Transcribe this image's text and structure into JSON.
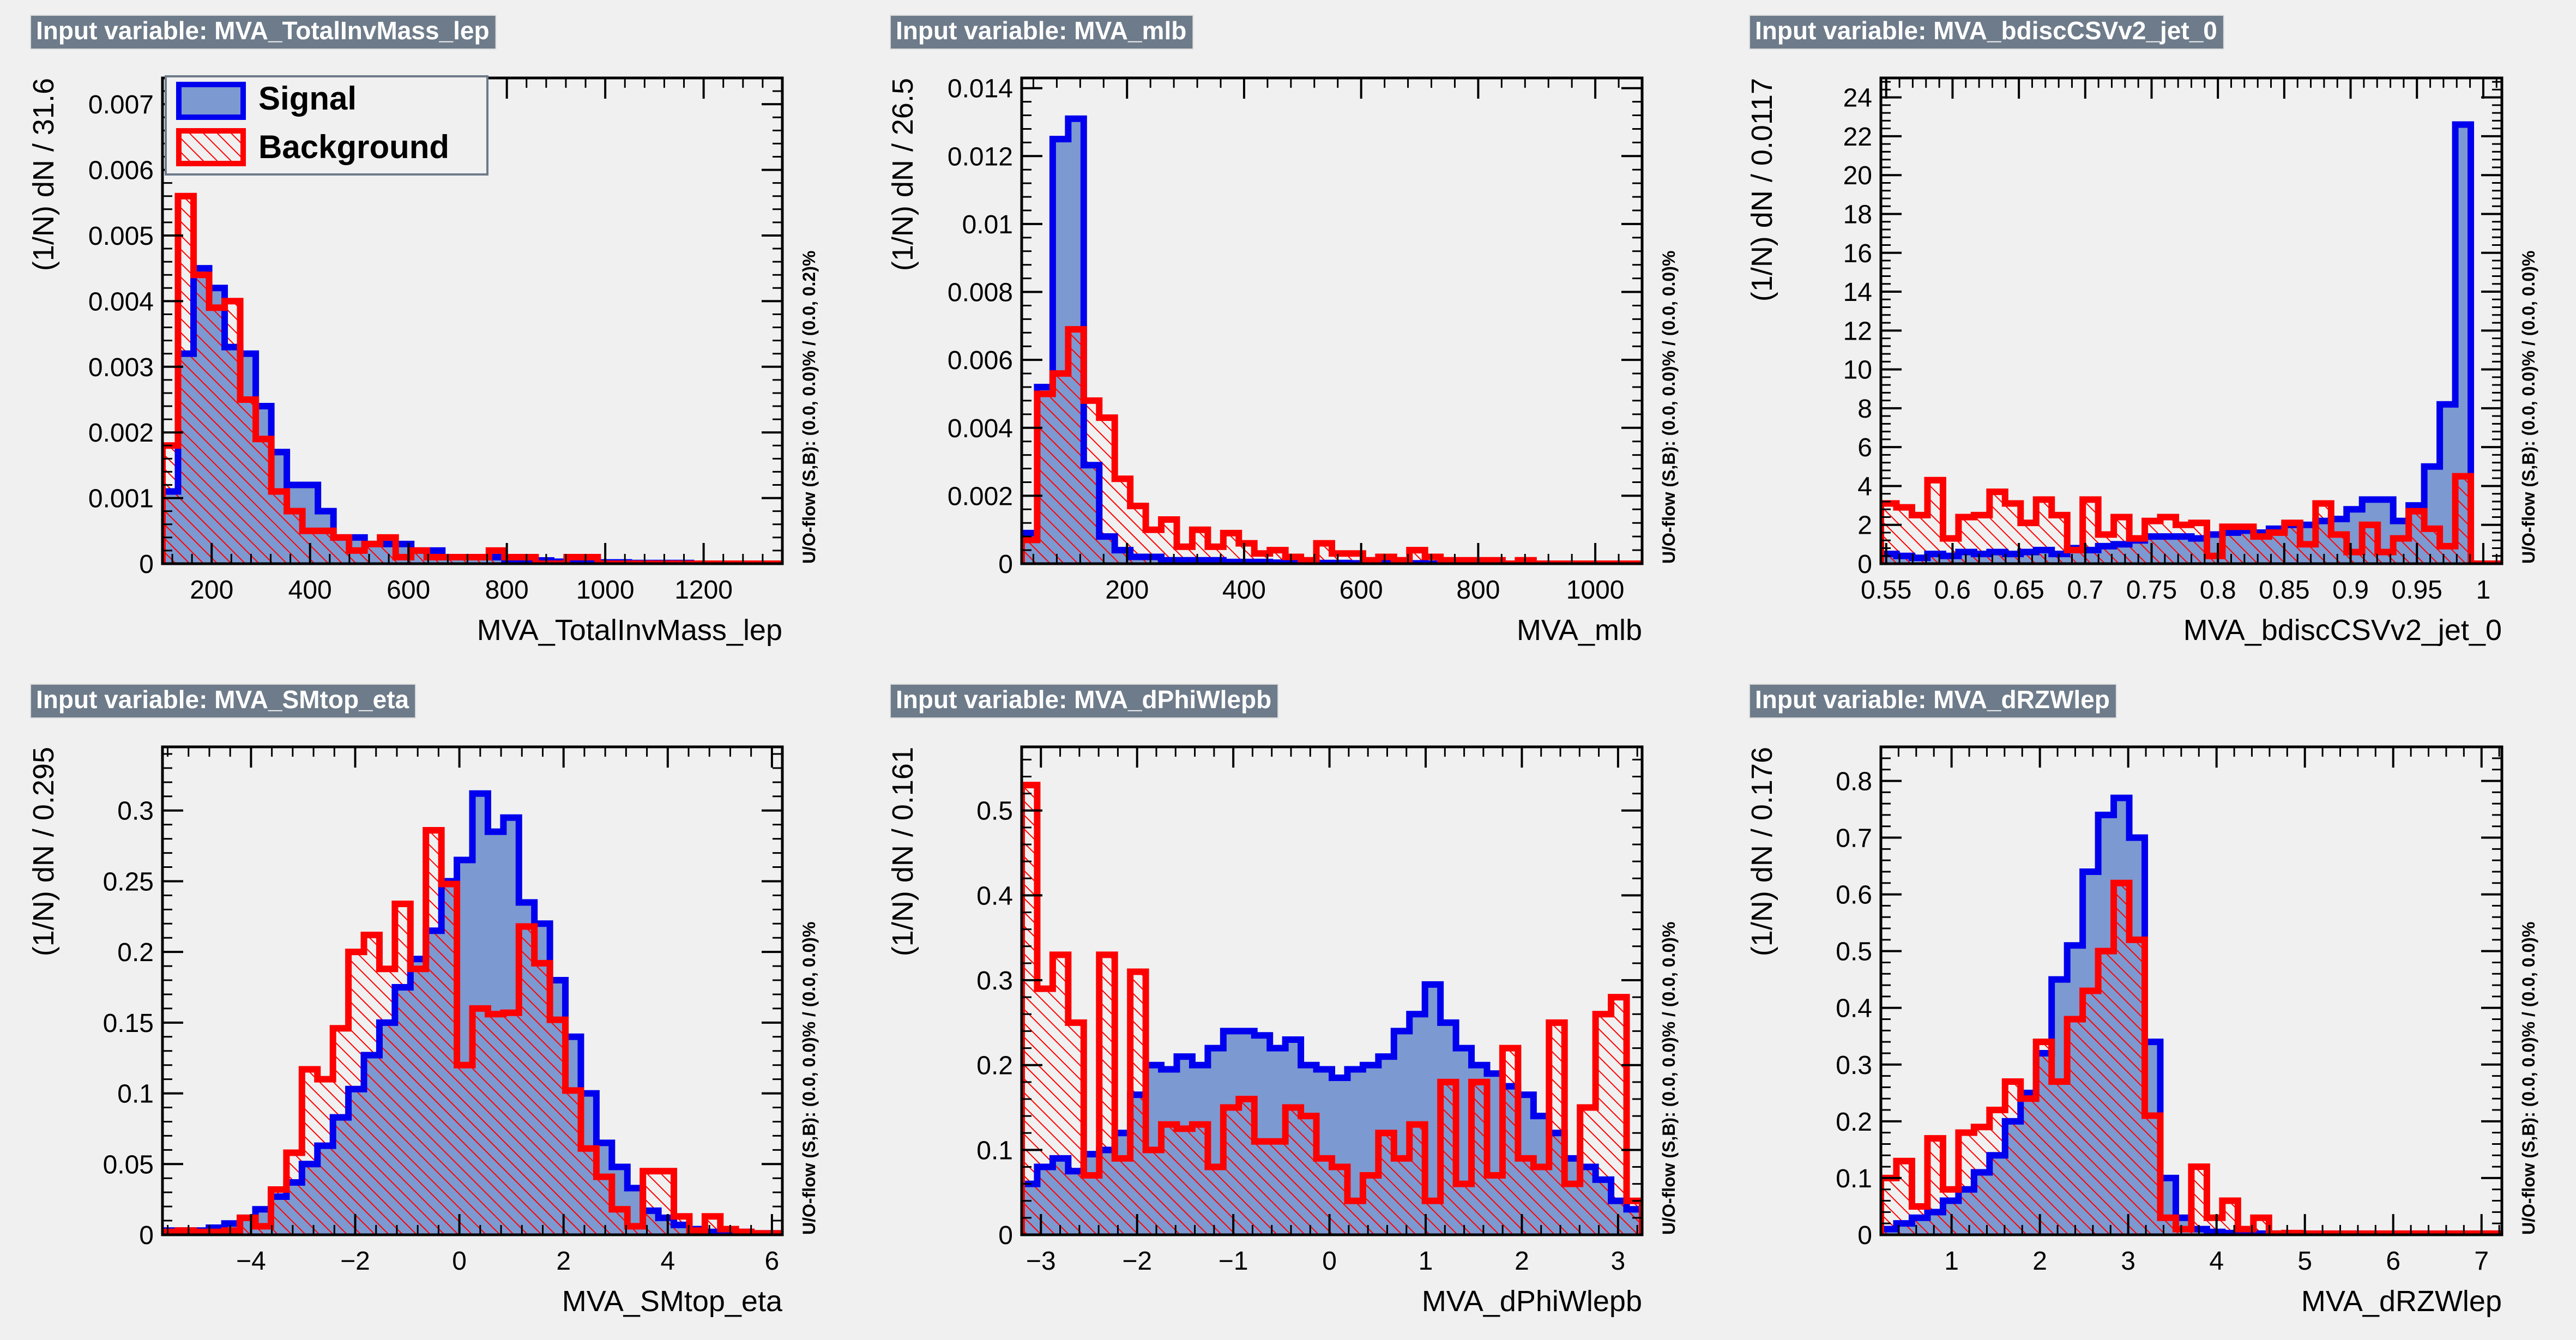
{
  "colors": {
    "background": "#f0f0f0",
    "signal_fill": "#7d99d1",
    "signal_line": "#0000ee",
    "background_line": "#ff0000",
    "title_box": "#6d7b8a",
    "title_text": "#ffffff"
  },
  "legend": {
    "signal_label": "Signal",
    "background_label": "Background"
  },
  "chart_data": [
    {
      "type": "histogram",
      "title": "Input variable: MVA_TotalInvMass_lep",
      "xlabel": "MVA_TotalInvMass_lep",
      "ylabel": "(1/N) dN / 31.6",
      "overflow_label": "U/O-flow (S,B): (0.0, 0.0)% / (0.0, 0.2)%",
      "xlim": [
        100,
        1360
      ],
      "ylim": [
        0,
        0.0074
      ],
      "xticks": [
        200,
        400,
        600,
        800,
        1000,
        1200
      ],
      "xtick_labels": [
        "200",
        "400",
        "600",
        "800",
        "1000",
        "1200"
      ],
      "yticks": [
        0,
        0.001,
        0.002,
        0.003,
        0.004,
        0.005,
        0.006,
        0.007
      ],
      "ytick_labels": [
        "0",
        "0.001",
        "0.002",
        "0.003",
        "0.004",
        "0.005",
        "0.006",
        "0.007"
      ],
      "has_legend": true,
      "bin_edges": [
        100,
        131.6,
        163.2,
        194.8,
        226.4,
        258,
        289.6,
        321.2,
        352.8,
        384.4,
        416,
        447.6,
        479.2,
        510.8,
        542.4,
        574,
        605.6,
        637.2,
        668.8,
        700.4,
        732,
        763.6,
        795.2,
        826.8,
        858.4,
        890,
        921.6,
        953.2,
        984.8,
        1016.4,
        1048,
        1079.6,
        1111.2,
        1142.8,
        1174.4,
        1206,
        1237.6,
        1269.2,
        1300.8,
        1332.4,
        1364
      ],
      "signal": [
        0.0011,
        0.0032,
        0.0045,
        0.0042,
        0.0033,
        0.0032,
        0.0024,
        0.0017,
        0.0012,
        0.0012,
        0.0008,
        0.0004,
        0.0004,
        0.0003,
        0.0003,
        0.0003,
        0.0002,
        0.0002,
        0.0001,
        0.0001,
        0.0001,
        0.0001,
        5e-05,
        5e-05,
        5e-05,
        3e-05,
        3e-05,
        2e-05,
        2e-05,
        2e-05,
        1e-05,
        1e-05,
        1e-05,
        1e-05,
        0,
        0,
        0,
        0,
        0,
        0
      ],
      "background": [
        0.0018,
        0.0056,
        0.0044,
        0.0039,
        0.004,
        0.0025,
        0.0019,
        0.0011,
        0.0008,
        0.0005,
        0.0005,
        0.0004,
        0.0002,
        0.0003,
        0.0004,
        0.0001,
        0.0002,
        0.0001,
        0.0001,
        0.0001,
        0.0001,
        0.0002,
        0.0001,
        0.0001,
        0,
        0,
        0.0001,
        0.0001,
        0,
        0,
        0,
        0,
        0,
        0,
        0,
        0,
        0,
        0,
        0,
        0
      ]
    },
    {
      "type": "histogram",
      "title": "Input variable: MVA_mlb",
      "xlabel": "MVA_mlb",
      "ylabel": "(1/N) dN / 26.5",
      "overflow_label": "U/O-flow (S,B): (0.0, 0.0)% / (0.0, 0.0)%",
      "xlim": [
        20,
        1080
      ],
      "ylim": [
        0,
        0.0143
      ],
      "xticks": [
        200,
        400,
        600,
        800,
        1000
      ],
      "xtick_labels": [
        "200",
        "400",
        "600",
        "800",
        "1000"
      ],
      "yticks": [
        0,
        0.002,
        0.004,
        0.006,
        0.008,
        0.01,
        0.012,
        0.014
      ],
      "ytick_labels": [
        "0",
        "0.002",
        "0.004",
        "0.006",
        "0.008",
        "0.01",
        "0.012",
        "0.014"
      ],
      "has_legend": false,
      "bin_edges": [
        20,
        46.5,
        73,
        99.5,
        126,
        152.5,
        179,
        205.5,
        232,
        258.5,
        285,
        311.5,
        338,
        364.5,
        391,
        417.5,
        444,
        470.5,
        497,
        523.5,
        550,
        576.5,
        603,
        629.5,
        656,
        682.5,
        709,
        735.5,
        762,
        788.5,
        815,
        841.5,
        868,
        894.5,
        921,
        947.5,
        974,
        1000.5,
        1027,
        1053.5,
        1080
      ],
      "signal": [
        0.0009,
        0.0052,
        0.0125,
        0.0131,
        0.0029,
        0.0008,
        0.0004,
        0.0002,
        0.0002,
        0.0001,
        0.0001,
        0.0001,
        0.0001,
        5e-05,
        5e-05,
        5e-05,
        3e-05,
        3e-05,
        2e-05,
        2e-05,
        2e-05,
        1e-05,
        1e-05,
        1e-05,
        1e-05,
        1e-05,
        0,
        0,
        0,
        0,
        0,
        0,
        0,
        0,
        0,
        0,
        0,
        0,
        0,
        0
      ],
      "background": [
        0.0007,
        0.005,
        0.0056,
        0.0069,
        0.0048,
        0.0043,
        0.0025,
        0.0017,
        0.001,
        0.0013,
        0.0005,
        0.001,
        0.0005,
        0.0009,
        0.0006,
        0.0003,
        0.0004,
        0.0002,
        0.0001,
        0.0006,
        0.0003,
        0.0003,
        0.0001,
        0.0002,
        0.0001,
        0.0004,
        0.0002,
        0.0001,
        0.0001,
        0.0001,
        0.0001,
        0,
        0.0001,
        0,
        0,
        0,
        0,
        0,
        0,
        0
      ]
    },
    {
      "type": "histogram",
      "title": "Input variable: MVA_bdiscCSVv2_jet_0",
      "xlabel": "MVA_bdiscCSVv2_jet_0",
      "ylabel": "(1/N) dN / 0.0117",
      "overflow_label": "U/O-flow (S,B): (0.0, 0.0)% / (0.0, 0.0)%",
      "xlim": [
        0.546,
        1.014
      ],
      "ylim": [
        0,
        25
      ],
      "xticks": [
        0.55,
        0.6,
        0.65,
        0.7,
        0.75,
        0.8,
        0.85,
        0.9,
        0.95,
        1
      ],
      "xtick_labels": [
        "0.55",
        "0.6",
        "0.65",
        "0.7",
        "0.75",
        "0.8",
        "0.85",
        "0.9",
        "0.95",
        "1"
      ],
      "yticks": [
        0,
        2,
        4,
        6,
        8,
        10,
        12,
        14,
        16,
        18,
        20,
        22,
        24
      ],
      "ytick_labels": [
        "0",
        "2",
        "4",
        "6",
        "8",
        "10",
        "12",
        "14",
        "16",
        "18",
        "20",
        "22",
        "24"
      ],
      "has_legend": false,
      "bin_edges": [
        0.546,
        0.5577,
        0.5694,
        0.5811,
        0.5928,
        0.6045,
        0.6162,
        0.6279,
        0.6396,
        0.6513,
        0.663,
        0.6747,
        0.6864,
        0.6981,
        0.7098,
        0.7215,
        0.7332,
        0.7449,
        0.7566,
        0.7683,
        0.78,
        0.7917,
        0.8034,
        0.8151,
        0.8268,
        0.8385,
        0.8502,
        0.8619,
        0.8736,
        0.8853,
        0.897,
        0.9087,
        0.9204,
        0.9321,
        0.9438,
        0.9555,
        0.9672,
        0.9789,
        0.9906,
        1.0023,
        1.014
      ],
      "signal": [
        0.5,
        0.4,
        0.3,
        0.5,
        0.4,
        0.6,
        0.5,
        0.6,
        0.5,
        0.6,
        0.7,
        0.5,
        0.8,
        0.7,
        0.9,
        1.0,
        1.2,
        1.4,
        1.4,
        1.4,
        1.3,
        1.5,
        1.6,
        1.7,
        1.6,
        1.8,
        2.0,
        2.0,
        2.2,
        2.3,
        2.8,
        3.3,
        3.3,
        2.2,
        3.0,
        5.0,
        8.2,
        22.6,
        0,
        0
      ],
      "background": [
        3.1,
        2.9,
        2.5,
        4.3,
        1.3,
        2.4,
        2.5,
        3.7,
        3.1,
        2.1,
        3.3,
        2.5,
        0.7,
        3.3,
        1.5,
        2.4,
        1.3,
        2.2,
        2.4,
        2.0,
        2.1,
        0.4,
        1.9,
        1.9,
        1.4,
        1.6,
        2.1,
        1.0,
        3.1,
        1.5,
        0.6,
        2.0,
        0.6,
        1.3,
        2.7,
        1.8,
        0.9,
        4.5,
        0,
        0
      ]
    },
    {
      "type": "histogram",
      "title": "Input variable: MVA_SMtop_eta",
      "xlabel": "MVA_SMtop_eta",
      "ylabel": "(1/N) dN / 0.295",
      "overflow_label": "U/O-flow (S,B): (0.0, 0.0)% / (0.0, 0.0)%",
      "xlim": [
        -5.7,
        6.2
      ],
      "ylim": [
        0,
        0.345
      ],
      "xticks": [
        -4,
        -2,
        0,
        2,
        4,
        6
      ],
      "xtick_labels": [
        "−4",
        "−2",
        "0",
        "2",
        "4",
        "6"
      ],
      "yticks": [
        0,
        0.05,
        0.1,
        0.15,
        0.2,
        0.25,
        0.3
      ],
      "ytick_labels": [
        "0",
        "0.05",
        "0.1",
        "0.15",
        "0.2",
        "0.25",
        "0.3"
      ],
      "has_legend": false,
      "bin_edges": [
        -5.7,
        -5.4025,
        -5.105,
        -4.8075,
        -4.51,
        -4.2125,
        -3.915,
        -3.6175,
        -3.32,
        -3.0225,
        -2.725,
        -2.4275,
        -2.13,
        -1.8325,
        -1.535,
        -1.2375,
        -0.94,
        -0.6425,
        -0.345,
        -0.0475,
        0.25,
        0.5475,
        0.845,
        1.1425,
        1.44,
        1.7375,
        2.035,
        2.3325,
        2.63,
        2.9275,
        3.225,
        3.5225,
        3.82,
        4.1175,
        4.415,
        4.7125,
        5.01,
        5.3075,
        5.605,
        5.9025,
        6.2
      ],
      "signal": [
        0.003,
        0.003,
        0.003,
        0.005,
        0.008,
        0.012,
        0.018,
        0.027,
        0.037,
        0.05,
        0.063,
        0.083,
        0.103,
        0.127,
        0.15,
        0.175,
        0.195,
        0.215,
        0.25,
        0.265,
        0.312,
        0.285,
        0.295,
        0.235,
        0.22,
        0.18,
        0.14,
        0.1,
        0.065,
        0.048,
        0.033,
        0.017,
        0.012,
        0.007,
        0.004,
        0.002,
        0.002,
        0.002,
        0.001,
        0.001
      ],
      "background": [
        0.002,
        0.003,
        0.002,
        0.002,
        0.003,
        0.012,
        0.006,
        0.032,
        0.058,
        0.117,
        0.11,
        0.146,
        0.2,
        0.212,
        0.188,
        0.234,
        0.188,
        0.286,
        0.248,
        0.12,
        0.16,
        0.156,
        0.157,
        0.218,
        0.192,
        0.152,
        0.102,
        0.061,
        0.041,
        0.018,
        0.006,
        0.045,
        0.045,
        0.013,
        0.003,
        0.013,
        0.004,
        0.002,
        0.001,
        0.001
      ]
    },
    {
      "type": "histogram",
      "title": "Input variable: MVA_dPhiWlepb",
      "xlabel": "MVA_dPhiWlepb",
      "ylabel": "(1/N) dN / 0.161",
      "overflow_label": "U/O-flow (S,B): (0.0, 0.0)% / (0.0, 0.0)%",
      "xlim": [
        -3.2,
        3.25
      ],
      "ylim": [
        0,
        0.575
      ],
      "xticks": [
        -3,
        -2,
        -1,
        0,
        1,
        2,
        3
      ],
      "xtick_labels": [
        "−3",
        "−2",
        "−1",
        "0",
        "1",
        "2",
        "3"
      ],
      "yticks": [
        0,
        0.1,
        0.2,
        0.3,
        0.4,
        0.5
      ],
      "ytick_labels": [
        "0",
        "0.1",
        "0.2",
        "0.3",
        "0.4",
        "0.5"
      ],
      "has_legend": false,
      "bin_edges": [
        -3.2,
        -3.03875,
        -2.8775,
        -2.71625,
        -2.555,
        -2.39375,
        -2.2325,
        -2.07125,
        -1.91,
        -1.74875,
        -1.5875,
        -1.42625,
        -1.265,
        -1.10375,
        -0.9425,
        -0.78125,
        -0.62,
        -0.45875,
        -0.2975,
        -0.13625,
        0.025,
        0.18625,
        0.3475,
        0.50875,
        0.67,
        0.83125,
        0.9925,
        1.15375,
        1.315,
        1.47625,
        1.6375,
        1.79875,
        1.96,
        2.12125,
        2.2825,
        2.44375,
        2.605,
        2.76625,
        2.9275,
        3.08875,
        3.25
      ],
      "signal": [
        0.06,
        0.08,
        0.09,
        0.075,
        0.095,
        0.1,
        0.12,
        0.165,
        0.2,
        0.195,
        0.21,
        0.2,
        0.22,
        0.24,
        0.24,
        0.235,
        0.22,
        0.23,
        0.2,
        0.195,
        0.185,
        0.195,
        0.2,
        0.21,
        0.24,
        0.26,
        0.295,
        0.25,
        0.22,
        0.2,
        0.19,
        0.175,
        0.165,
        0.14,
        0.12,
        0.09,
        0.08,
        0.065,
        0.04,
        0.03
      ],
      "background": [
        0.53,
        0.29,
        0.33,
        0.25,
        0.07,
        0.33,
        0.09,
        0.31,
        0.1,
        0.13,
        0.125,
        0.13,
        0.08,
        0.15,
        0.16,
        0.11,
        0.11,
        0.15,
        0.14,
        0.09,
        0.08,
        0.04,
        0.07,
        0.12,
        0.09,
        0.13,
        0.04,
        0.18,
        0.06,
        0.18,
        0.07,
        0.22,
        0.09,
        0.08,
        0.25,
        0.06,
        0.15,
        0.26,
        0.28,
        0.04
      ]
    },
    {
      "type": "histogram",
      "title": "Input variable: MVA_dRZWlep",
      "xlabel": "MVA_dRZWlep",
      "ylabel": "(1/N) dN / 0.176",
      "overflow_label": "U/O-flow (S,B): (0.0, 0.0)% / (0.0, 0.0)%",
      "xlim": [
        0.2,
        7.23
      ],
      "ylim": [
        0,
        0.86
      ],
      "xticks": [
        1,
        2,
        3,
        4,
        5,
        6,
        7
      ],
      "xtick_labels": [
        "1",
        "2",
        "3",
        "4",
        "5",
        "6",
        "7"
      ],
      "yticks": [
        0,
        0.1,
        0.2,
        0.3,
        0.4,
        0.5,
        0.6,
        0.7,
        0.8
      ],
      "ytick_labels": [
        "0",
        "0.1",
        "0.2",
        "0.3",
        "0.4",
        "0.5",
        "0.6",
        "0.7",
        "0.8"
      ],
      "has_legend": false,
      "bin_edges": [
        0.2,
        0.375725,
        0.55145,
        0.727175,
        0.9029,
        1.078625,
        1.25435,
        1.430075,
        1.6058,
        1.781525,
        1.95725,
        2.132975,
        2.3087,
        2.484425,
        2.66015,
        2.835875,
        3.0116,
        3.187325,
        3.36305,
        3.538775,
        3.7145,
        3.890225,
        4.06595,
        4.241675,
        4.4174,
        4.593125,
        4.76885,
        4.944575,
        5.1203,
        5.296025,
        5.47175,
        5.647475,
        5.8232,
        5.998925,
        6.17465,
        6.350375,
        6.5261,
        6.701825,
        6.87755,
        7.053275,
        7.229
      ],
      "signal": [
        0.01,
        0.02,
        0.03,
        0.04,
        0.06,
        0.08,
        0.11,
        0.14,
        0.2,
        0.25,
        0.32,
        0.45,
        0.51,
        0.64,
        0.74,
        0.77,
        0.7,
        0.34,
        0.1,
        0.03,
        0.01,
        0.005,
        0.003,
        0.003,
        0.002,
        0.002,
        0.001,
        0.001,
        0.001,
        0.001,
        0.001,
        0,
        0,
        0,
        0,
        0,
        0,
        0,
        0,
        0
      ],
      "background": [
        0.1,
        0.13,
        0.05,
        0.17,
        0.08,
        0.18,
        0.19,
        0.22,
        0.27,
        0.24,
        0.34,
        0.27,
        0.38,
        0.43,
        0.5,
        0.62,
        0.52,
        0.21,
        0.03,
        0.01,
        0.12,
        0.03,
        0.06,
        0.01,
        0.03,
        0.002,
        0.003,
        0.002,
        0.002,
        0.002,
        0.002,
        0.002,
        0.002,
        0.002,
        0.002,
        0.002,
        0.002,
        0.002,
        0.002,
        0.002
      ]
    }
  ]
}
